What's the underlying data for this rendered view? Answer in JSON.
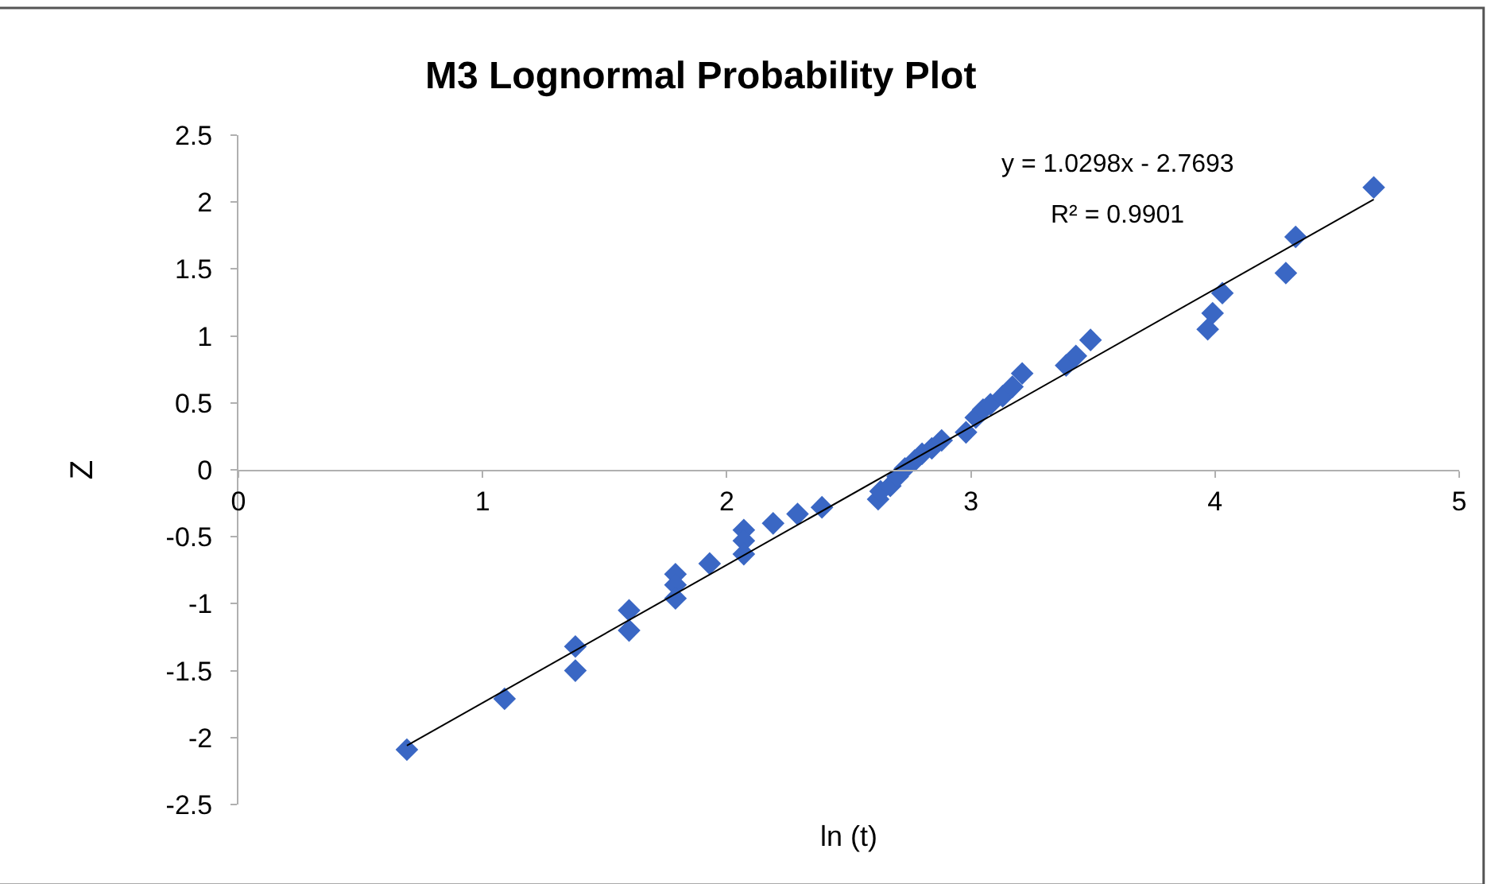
{
  "chart_data": {
    "type": "scatter",
    "title": "M3 Lognormal Probability Plot",
    "xlabel": "ln (t)",
    "ylabel": "Z",
    "xlim": [
      0,
      5
    ],
    "xticks": [
      0,
      1,
      2,
      3,
      4,
      5
    ],
    "ylim": [
      -2.5,
      2.5
    ],
    "yticks": [
      -2.5,
      -2,
      -1.5,
      -1,
      -0.5,
      0,
      0.5,
      1,
      1.5,
      2,
      2.5
    ],
    "marker": "diamond",
    "annotations": [
      "y = 1.0298x - 2.7693",
      "R² = 0.9901"
    ],
    "series": [
      {
        "color": "#3a67c4",
        "x": [
          0.69,
          1.09,
          1.38,
          1.38,
          1.6,
          1.6,
          1.79,
          1.79,
          1.79,
          1.93,
          2.07,
          2.07,
          2.07,
          2.19,
          2.29,
          2.39,
          2.62,
          2.63,
          2.67,
          2.7,
          2.73,
          2.77,
          2.8,
          2.84,
          2.88,
          2.98,
          3.02,
          3.05,
          3.08,
          3.13,
          3.17,
          3.21,
          3.39,
          3.43,
          3.49,
          3.97,
          3.99,
          4.03,
          4.29,
          4.33,
          4.65
        ],
        "values": [
          -2.09,
          -1.71,
          -1.32,
          -1.5,
          -1.05,
          -1.2,
          -0.78,
          -0.86,
          -0.96,
          -0.7,
          -0.45,
          -0.53,
          -0.63,
          -0.4,
          -0.33,
          -0.28,
          -0.22,
          -0.16,
          -0.12,
          -0.05,
          0.01,
          0.07,
          0.12,
          0.16,
          0.22,
          0.28,
          0.39,
          0.45,
          0.49,
          0.55,
          0.62,
          0.72,
          0.78,
          0.85,
          0.97,
          1.05,
          1.17,
          1.32,
          1.47,
          1.74,
          2.11
        ]
      },
      {
        "type": "line",
        "color": "#000000",
        "marker": "none",
        "line_style": "solid",
        "x": [
          0.69,
          4.65
        ],
        "values": [
          -2.06,
          2.02
        ]
      }
    ]
  }
}
